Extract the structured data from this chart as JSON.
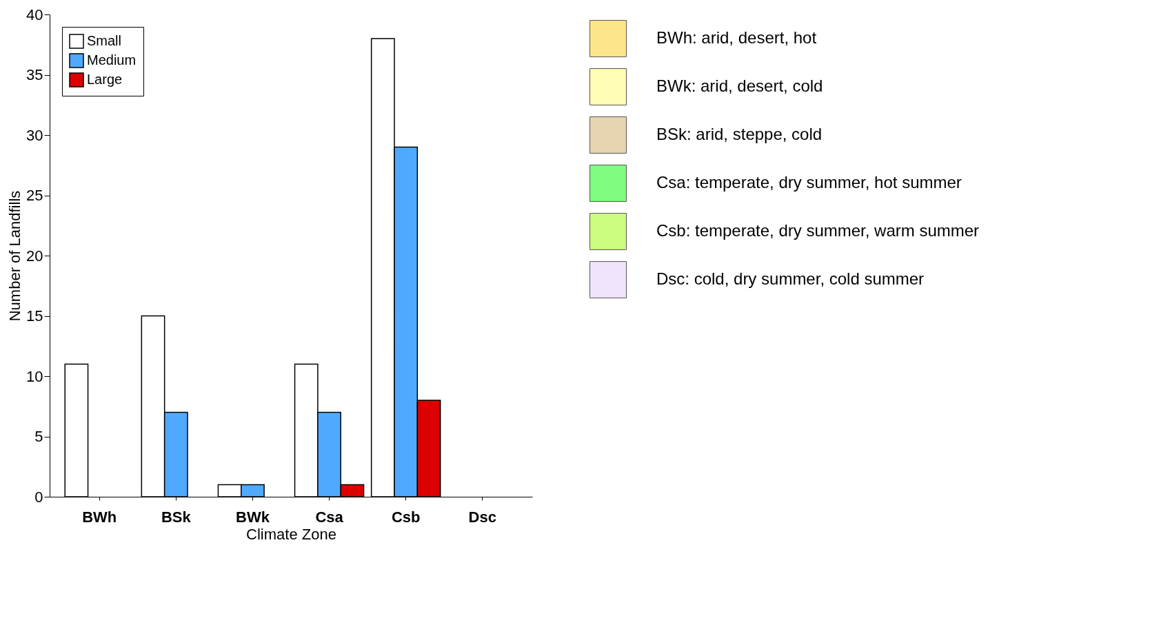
{
  "chart_data": [
    {
      "type": "bar",
      "xlabel": "Climate Zone",
      "ylabel": "Number of Landfills",
      "categories": [
        "BWh",
        "BSk",
        "BWk",
        "Csa",
        "Csb",
        "Dsc"
      ],
      "series": [
        {
          "name": "Small",
          "color": "#ffffff",
          "values": [
            11,
            15,
            1,
            11,
            38,
            null
          ]
        },
        {
          "name": "Medium",
          "color": "#4faaff",
          "values": [
            null,
            7,
            1,
            7,
            29,
            null
          ]
        },
        {
          "name": "Large",
          "color": "#dd0000",
          "values": [
            null,
            null,
            null,
            1,
            8,
            null
          ]
        }
      ],
      "ylim": [
        0,
        40
      ],
      "yticks": [
        0,
        5,
        10,
        15,
        20,
        25,
        30,
        35,
        40
      ],
      "grid": false,
      "legend": "top left"
    },
    {
      "type": "other",
      "categories": [
        "BWh: arid, desert, hot",
        "BWk: arid, desert, cold",
        "BSk: arid, steppe, cold",
        "Csa: temperate, dry summer, hot summer",
        "Csb: temperate, dry summer, warm summer",
        "Dsc: cold, dry summer, cold summer"
      ],
      "colors": [
        "#fde58a",
        "#fefcb5",
        "#e6d5b0",
        "#80fc80",
        "#ccfd80",
        "#f0e4fb"
      ]
    }
  ]
}
